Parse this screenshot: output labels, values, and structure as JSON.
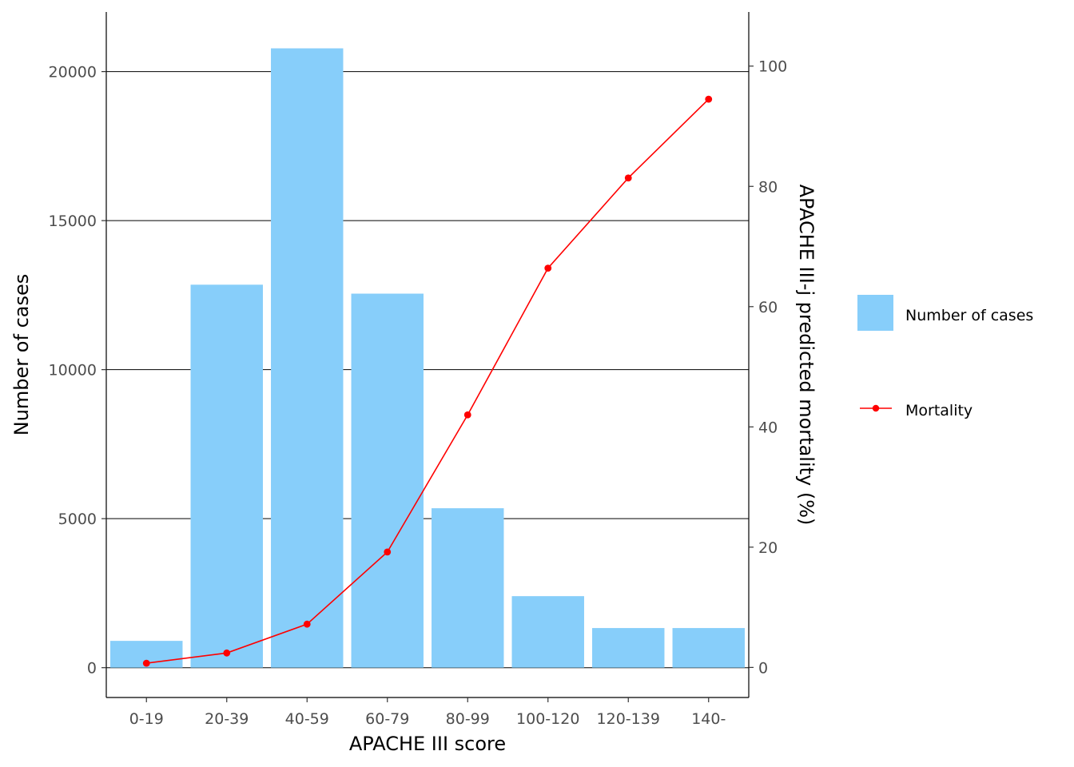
{
  "chart_data": {
    "type": "bar",
    "categories": [
      "0-19",
      "20-39",
      "40-59",
      "60-79",
      "80-99",
      "100-120",
      "120-139",
      "140-"
    ],
    "series": [
      {
        "name": "Number of cases",
        "type": "bar",
        "axis": "left",
        "values": [
          900,
          12850,
          20780,
          12550,
          5350,
          2400,
          1330,
          1330
        ]
      },
      {
        "name": "Mortality",
        "type": "line",
        "axis": "right",
        "values": [
          0.7,
          2.4,
          7.2,
          19.2,
          42.0,
          66.4,
          81.4,
          94.5
        ]
      }
    ],
    "xlabel": "APACHE III score",
    "ylabel": "Number of cases",
    "y2label": "APACHE III-j predicted mortality (%)",
    "ylim": [
      -1000,
      22000
    ],
    "y2lim": [
      -5,
      109
    ],
    "yticks": [
      0,
      5000,
      10000,
      15000,
      20000
    ],
    "y2ticks": [
      0,
      20,
      40,
      60,
      80,
      100
    ],
    "grid": "horizontal major",
    "legend": "right",
    "colors": {
      "bar": "#87CEFA",
      "line": "#FF0000",
      "grid": "#000000"
    }
  }
}
